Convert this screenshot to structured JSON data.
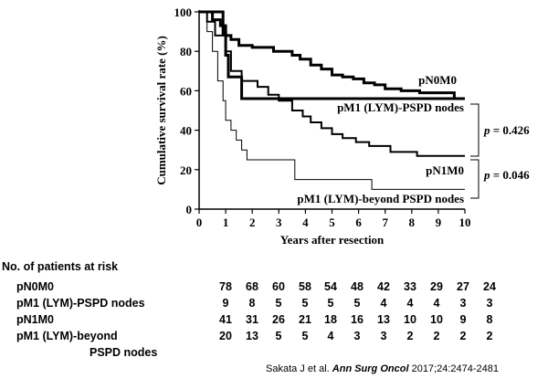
{
  "chart_data": {
    "type": "line",
    "subtype": "kaplan-meier",
    "xlabel": "Years after resection",
    "ylabel": "Cumulative survival rate (%)",
    "xlim": [
      0,
      10
    ],
    "ylim": [
      0,
      100
    ],
    "xticks": [
      "0",
      "1",
      "2",
      "3",
      "4",
      "5",
      "6",
      "7",
      "8",
      "9",
      "10"
    ],
    "yticks": [
      "0",
      "20",
      "40",
      "60",
      "80",
      "100"
    ],
    "grid": false,
    "series": [
      {
        "name": "pN0M0",
        "stroke": "thick",
        "x": [
          0,
          0.5,
          0.5,
          0.8,
          0.8,
          1.0,
          1.0,
          1.2,
          1.2,
          1.5,
          1.5,
          2.0,
          2.0,
          2.8,
          2.8,
          3.5,
          3.5,
          3.8,
          3.8,
          4.2,
          4.2,
          4.6,
          4.6,
          5.0,
          5.0,
          5.4,
          5.4,
          5.8,
          5.8,
          6.2,
          6.2,
          6.6,
          6.6,
          7.0,
          7.0,
          7.6,
          7.6,
          8.3,
          8.3,
          9.0,
          9.0,
          9.6,
          9.6,
          10
        ],
        "y": [
          100,
          100,
          96,
          96,
          93,
          93,
          88,
          88,
          86,
          86,
          83,
          83,
          82,
          82,
          80,
          80,
          78,
          78,
          76,
          76,
          73,
          73,
          71,
          71,
          68,
          68,
          67,
          67,
          66,
          66,
          64,
          64,
          63,
          63,
          61,
          61,
          60,
          60,
          59,
          59,
          59,
          59,
          56,
          56
        ]
      },
      {
        "name": "pM1 (LYM)-PSPD nodes",
        "stroke": "thick",
        "x": [
          0,
          0.9,
          0.9,
          1.0,
          1.0,
          1.1,
          1.1,
          1.3,
          1.3,
          1.6,
          1.6,
          10
        ],
        "y": [
          100,
          100,
          89,
          89,
          78,
          78,
          67,
          67,
          67,
          67,
          56,
          56
        ]
      },
      {
        "name": "pN1M0",
        "stroke": "medium",
        "x": [
          0,
          0.3,
          0.3,
          0.6,
          0.6,
          1.0,
          1.0,
          1.2,
          1.2,
          1.6,
          1.6,
          2.2,
          2.2,
          2.6,
          2.6,
          3.0,
          3.0,
          3.5,
          3.5,
          3.9,
          3.9,
          4.2,
          4.2,
          4.6,
          4.6,
          5.0,
          5.0,
          5.4,
          5.4,
          5.9,
          5.9,
          6.4,
          6.4,
          7.2,
          7.2,
          8.2,
          8.2,
          10
        ],
        "y": [
          100,
          100,
          95,
          95,
          88,
          88,
          80,
          80,
          70,
          70,
          65,
          65,
          62,
          62,
          58,
          58,
          55,
          55,
          50,
          50,
          47,
          47,
          44,
          44,
          41,
          41,
          38,
          38,
          36,
          36,
          34,
          34,
          32,
          32,
          29,
          29,
          27,
          27
        ]
      },
      {
        "name": "pM1 (LYM)-beyond PSPD nodes",
        "stroke": "thin",
        "x": [
          0,
          0.3,
          0.3,
          0.5,
          0.5,
          0.7,
          0.7,
          0.9,
          0.9,
          1.0,
          1.0,
          1.2,
          1.2,
          1.4,
          1.4,
          1.6,
          1.6,
          1.8,
          1.8,
          3.6,
          3.6,
          6.5,
          6.5,
          10
        ],
        "y": [
          100,
          100,
          90,
          90,
          80,
          80,
          65,
          65,
          55,
          55,
          45,
          45,
          40,
          40,
          35,
          35,
          30,
          30,
          25,
          25,
          15,
          15,
          10,
          10
        ]
      }
    ],
    "series_labels": [
      "pN0M0",
      "pM1 (LYM)-PSPD nodes",
      "pN1M0",
      "pM1 (LYM)-beyond PSPD nodes"
    ],
    "annotations": [
      {
        "prefix": "p",
        "text": " = 0.426"
      },
      {
        "prefix": "p",
        "text": " = 0.046"
      }
    ]
  },
  "risk_table": {
    "title": "No. of patients at risk",
    "rows": [
      {
        "label": "pN0M0",
        "values": [
          "78",
          "68",
          "60",
          "58",
          "54",
          "48",
          "42",
          "33",
          "29",
          "27",
          "24"
        ]
      },
      {
        "label": "pM1 (LYM)-PSPD nodes",
        "values": [
          "9",
          "8",
          "5",
          "5",
          "5",
          "5",
          "4",
          "4",
          "4",
          "3",
          "3"
        ]
      },
      {
        "label": "pN1M0",
        "values": [
          "41",
          "31",
          "26",
          "21",
          "18",
          "16",
          "13",
          "10",
          "10",
          "9",
          "8"
        ]
      },
      {
        "label": "pM1 (LYM)-beyond",
        "label2": "PSPD nodes",
        "values": [
          "20",
          "13",
          "5",
          "5",
          "4",
          "3",
          "3",
          "2",
          "2",
          "2",
          "2"
        ]
      }
    ]
  },
  "citation": {
    "authors": "Sakata J et al.",
    "journal": "Ann Surg Oncol",
    "details": "2017;24:2474-2481"
  }
}
